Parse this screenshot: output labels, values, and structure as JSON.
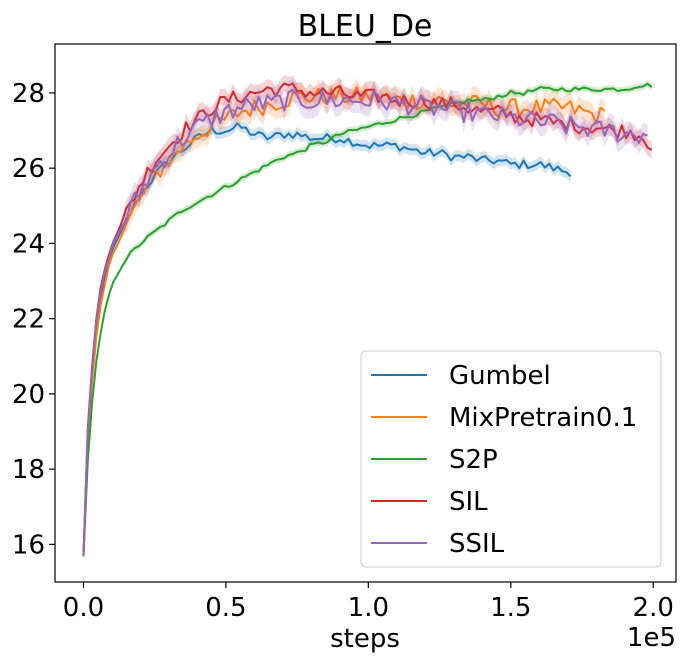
{
  "chart_data": {
    "type": "line",
    "title": "BLEU_De",
    "xlabel": "steps",
    "ylabel": "",
    "x_offset_label": "1e5",
    "x_unit_scale": 100000,
    "xlim": [
      -10000,
      208000
    ],
    "ylim": [
      15.0,
      29.3
    ],
    "x_ticks": [
      0,
      50000,
      100000,
      150000,
      200000
    ],
    "x_tick_labels": [
      "0.0",
      "0.5",
      "1.0",
      "1.5",
      "2.0"
    ],
    "y_ticks": [
      16,
      18,
      20,
      22,
      24,
      26,
      28
    ],
    "y_tick_labels": [
      "16",
      "18",
      "20",
      "22",
      "24",
      "26",
      "28"
    ],
    "grid": false,
    "legend_position": "lower-right",
    "series": [
      {
        "name": "Gumbel",
        "color": "#1f77b4",
        "x": [
          0,
          1000,
          2000,
          4000,
          6000,
          8000,
          10000,
          15000,
          20000,
          25000,
          30000,
          35000,
          40000,
          45000,
          50000,
          55000,
          60000,
          65000,
          70000,
          75000,
          80000,
          85000,
          90000,
          95000,
          100000,
          105000,
          110000,
          115000,
          120000,
          125000,
          130000,
          135000,
          140000,
          145000,
          150000,
          155000,
          160000,
          165000,
          170000,
          172000
        ],
        "y": [
          15.7,
          18.0,
          19.5,
          21.4,
          22.5,
          23.3,
          23.8,
          24.6,
          25.3,
          25.8,
          26.2,
          26.5,
          26.8,
          27.0,
          27.0,
          27.1,
          26.9,
          26.8,
          26.9,
          26.9,
          26.8,
          26.8,
          26.8,
          26.7,
          26.6,
          26.6,
          26.6,
          26.5,
          26.4,
          26.4,
          26.3,
          26.3,
          26.2,
          26.2,
          26.1,
          26.1,
          26.1,
          26.0,
          25.9,
          25.9
        ]
      },
      {
        "name": "MixPretrain0.1",
        "color": "#ff7f0e",
        "x": [
          0,
          1000,
          2000,
          4000,
          6000,
          8000,
          10000,
          15000,
          20000,
          25000,
          30000,
          35000,
          40000,
          45000,
          50000,
          55000,
          60000,
          65000,
          70000,
          75000,
          80000,
          85000,
          90000,
          95000,
          100000,
          105000,
          110000,
          115000,
          120000,
          125000,
          130000,
          135000,
          140000,
          145000,
          150000,
          155000,
          160000,
          165000,
          170000,
          175000,
          180000,
          183000
        ],
        "y": [
          15.7,
          18.0,
          19.4,
          21.2,
          22.3,
          23.1,
          23.7,
          24.5,
          25.2,
          25.8,
          26.2,
          26.6,
          26.9,
          27.1,
          27.3,
          27.5,
          27.6,
          27.7,
          27.8,
          27.9,
          27.9,
          27.9,
          27.9,
          27.9,
          27.9,
          27.9,
          27.8,
          27.8,
          27.8,
          27.8,
          27.7,
          27.7,
          27.7,
          27.6,
          27.6,
          27.6,
          27.6,
          27.6,
          27.6,
          27.5,
          27.4,
          27.4
        ]
      },
      {
        "name": "S2P",
        "color": "#2ca02c",
        "x": [
          0,
          1000,
          2000,
          4000,
          6000,
          8000,
          10000,
          15000,
          20000,
          25000,
          30000,
          35000,
          40000,
          45000,
          50000,
          55000,
          60000,
          65000,
          70000,
          75000,
          80000,
          85000,
          90000,
          95000,
          100000,
          105000,
          110000,
          115000,
          120000,
          125000,
          130000,
          135000,
          140000,
          145000,
          150000,
          155000,
          160000,
          165000,
          170000,
          175000,
          180000,
          185000,
          190000,
          195000,
          200000
        ],
        "y": [
          15.7,
          17.5,
          18.9,
          20.6,
          21.6,
          22.4,
          22.9,
          23.6,
          24.0,
          24.3,
          24.6,
          24.9,
          25.1,
          25.3,
          25.5,
          25.7,
          25.9,
          26.1,
          26.3,
          26.4,
          26.6,
          26.7,
          26.9,
          27.0,
          27.1,
          27.2,
          27.3,
          27.4,
          27.5,
          27.6,
          27.7,
          27.8,
          27.8,
          27.9,
          28.0,
          28.0,
          28.1,
          28.1,
          28.1,
          28.1,
          28.1,
          28.1,
          28.1,
          28.2,
          28.2
        ]
      },
      {
        "name": "SIL",
        "color": "#d62728",
        "x": [
          0,
          1000,
          2000,
          4000,
          6000,
          8000,
          10000,
          15000,
          20000,
          25000,
          30000,
          35000,
          40000,
          45000,
          50000,
          55000,
          60000,
          65000,
          70000,
          75000,
          80000,
          85000,
          90000,
          95000,
          100000,
          105000,
          110000,
          115000,
          120000,
          125000,
          130000,
          135000,
          140000,
          145000,
          150000,
          155000,
          160000,
          165000,
          170000,
          175000,
          180000,
          185000,
          190000,
          195000,
          200000
        ],
        "y": [
          15.7,
          18.3,
          19.8,
          21.7,
          22.8,
          23.5,
          24.0,
          24.8,
          25.6,
          26.2,
          26.6,
          27.0,
          27.3,
          27.6,
          27.8,
          27.9,
          28.0,
          28.1,
          28.1,
          28.1,
          28.0,
          28.0,
          28.0,
          27.9,
          27.9,
          27.9,
          27.8,
          27.8,
          27.8,
          27.7,
          27.7,
          27.6,
          27.5,
          27.5,
          27.4,
          27.3,
          27.3,
          27.2,
          27.2,
          27.1,
          27.1,
          27.0,
          27.0,
          26.9,
          26.6
        ]
      },
      {
        "name": "SSIL",
        "color": "#9467bd",
        "x": [
          0,
          1000,
          2000,
          4000,
          6000,
          8000,
          10000,
          15000,
          20000,
          25000,
          30000,
          35000,
          40000,
          45000,
          50000,
          55000,
          60000,
          65000,
          70000,
          75000,
          80000,
          85000,
          90000,
          95000,
          100000,
          105000,
          110000,
          115000,
          120000,
          125000,
          130000,
          135000,
          140000,
          145000,
          150000,
          155000,
          160000,
          165000,
          170000,
          175000,
          180000,
          185000,
          190000,
          195000,
          198000
        ],
        "y": [
          15.7,
          18.2,
          19.7,
          21.6,
          22.7,
          23.4,
          23.9,
          24.7,
          25.4,
          26.0,
          26.4,
          26.8,
          27.1,
          27.3,
          27.5,
          27.6,
          27.7,
          27.7,
          27.8,
          27.8,
          27.8,
          27.8,
          27.8,
          27.8,
          27.8,
          27.8,
          27.7,
          27.7,
          27.6,
          27.6,
          27.5,
          27.5,
          27.4,
          27.4,
          27.3,
          27.3,
          27.2,
          27.2,
          27.1,
          27.1,
          27.0,
          27.0,
          26.9,
          26.9,
          26.9
        ]
      }
    ]
  }
}
